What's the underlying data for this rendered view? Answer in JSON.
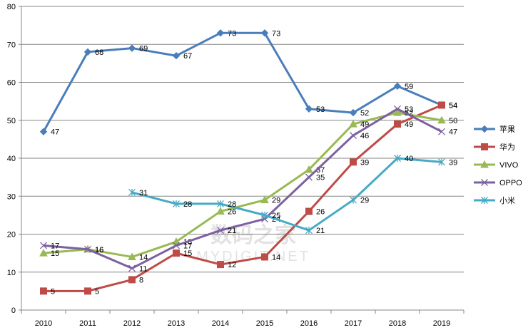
{
  "chart_data": {
    "type": "line",
    "title": "",
    "xlabel": "",
    "ylabel": "",
    "categories": [
      "2010",
      "2011",
      "2012",
      "2013",
      "2014",
      "2015",
      "2016",
      "2017",
      "2018",
      "2019"
    ],
    "ylim": [
      0,
      80
    ],
    "yticks": [
      0,
      10,
      20,
      30,
      40,
      50,
      60,
      70,
      80
    ],
    "grid": "horizontal",
    "legend_position": "right",
    "series": [
      {
        "name": "苹果",
        "color": "#4A7EBB",
        "marker": "diamond",
        "values": [
          47,
          68,
          69,
          67,
          73,
          73,
          53,
          52,
          59,
          54
        ]
      },
      {
        "name": "华为",
        "color": "#BE4B48",
        "marker": "square",
        "values": [
          5,
          5,
          8,
          15,
          12,
          14,
          26,
          39,
          49,
          54
        ]
      },
      {
        "name": "VIVO",
        "color": "#98B954",
        "marker": "triangle",
        "values": [
          15,
          16,
          14,
          18,
          26,
          29,
          37,
          49,
          52,
          50
        ]
      },
      {
        "name": "OPPO",
        "color": "#7D60A0",
        "marker": "x",
        "values": [
          17,
          16,
          11,
          17,
          21,
          24,
          35,
          46,
          53,
          47
        ]
      },
      {
        "name": "小米",
        "color": "#46AAC5",
        "marker": "star",
        "values": [
          null,
          null,
          31,
          28,
          28,
          25,
          21,
          29,
          40,
          39
        ]
      }
    ],
    "watermark": "数码之家 MYDIGIT.NET"
  }
}
